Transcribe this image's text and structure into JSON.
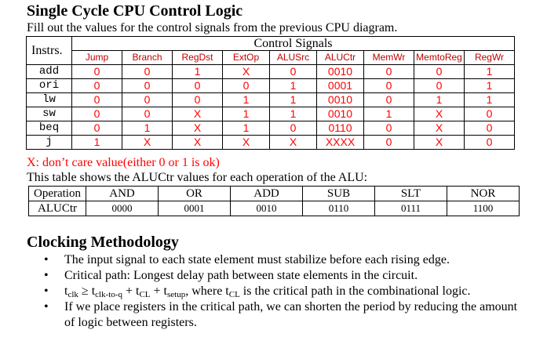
{
  "title": "Single Cycle CPU Control Logic",
  "subtitle": "Fill out the values for the control signals from the previous CPU diagram.",
  "control_table": {
    "instr_header": "Instrs.",
    "group_header": "Control Signals",
    "signals": [
      "Jump",
      "Branch",
      "RegDst",
      "ExtOp",
      "ALUSrc",
      "ALUCtr",
      "MemWr",
      "MemtoReg",
      "RegWr"
    ],
    "rows": [
      {
        "instr": "add",
        "values": [
          "0",
          "0",
          "1",
          "X",
          "0",
          "0010",
          "0",
          "0",
          "1"
        ]
      },
      {
        "instr": "ori",
        "values": [
          "0",
          "0",
          "0",
          "0",
          "1",
          "0001",
          "0",
          "0",
          "1"
        ]
      },
      {
        "instr": "lw",
        "values": [
          "0",
          "0",
          "0",
          "1",
          "1",
          "0010",
          "0",
          "1",
          "1"
        ]
      },
      {
        "instr": "sw",
        "values": [
          "0",
          "0",
          "X",
          "1",
          "1",
          "0010",
          "1",
          "X",
          "0"
        ]
      },
      {
        "instr": "beq",
        "values": [
          "0",
          "1",
          "X",
          "1",
          "0",
          "0110",
          "0",
          "X",
          "0"
        ]
      },
      {
        "instr": "j",
        "values": [
          "1",
          "X",
          "X",
          "X",
          "X",
          "XXXX",
          "0",
          "X",
          "0"
        ]
      }
    ]
  },
  "dont_care_note": "X: don’t care value(either 0 or 1 is ok)",
  "alu_intro": "This table shows the ALUCtr values for each operation of the ALU:",
  "alu_table": {
    "row1_label": "Operation",
    "row2_label": "ALUCtr",
    "operations": [
      "AND",
      "OR",
      "ADD",
      "SUB",
      "SLT",
      "NOR"
    ],
    "codes": [
      "0000",
      "0001",
      "0010",
      "0110",
      "0111",
      "1100"
    ]
  },
  "section2_title": "Clocking Methodology",
  "bullets": {
    "b1": "The input signal to each state element must stabilize before each rising edge.",
    "b2": "Critical path: Longest delay path between state elements in the circuit.",
    "b3": {
      "t": "t",
      "clk": "clk",
      "ge": " ≥ t",
      "clktoq": "clk-to-q",
      "plus1": " + t",
      "cl": "CL",
      "plus2": " + t",
      "setup": "setup",
      "where": ", where t",
      "cl2": "CL",
      "rest": " is the critical path in the combinational logic."
    },
    "b4": "If we place registers in the critical path, we can shorten the period by reducing the amount of logic between registers."
  },
  "bullet_glyph": "•"
}
